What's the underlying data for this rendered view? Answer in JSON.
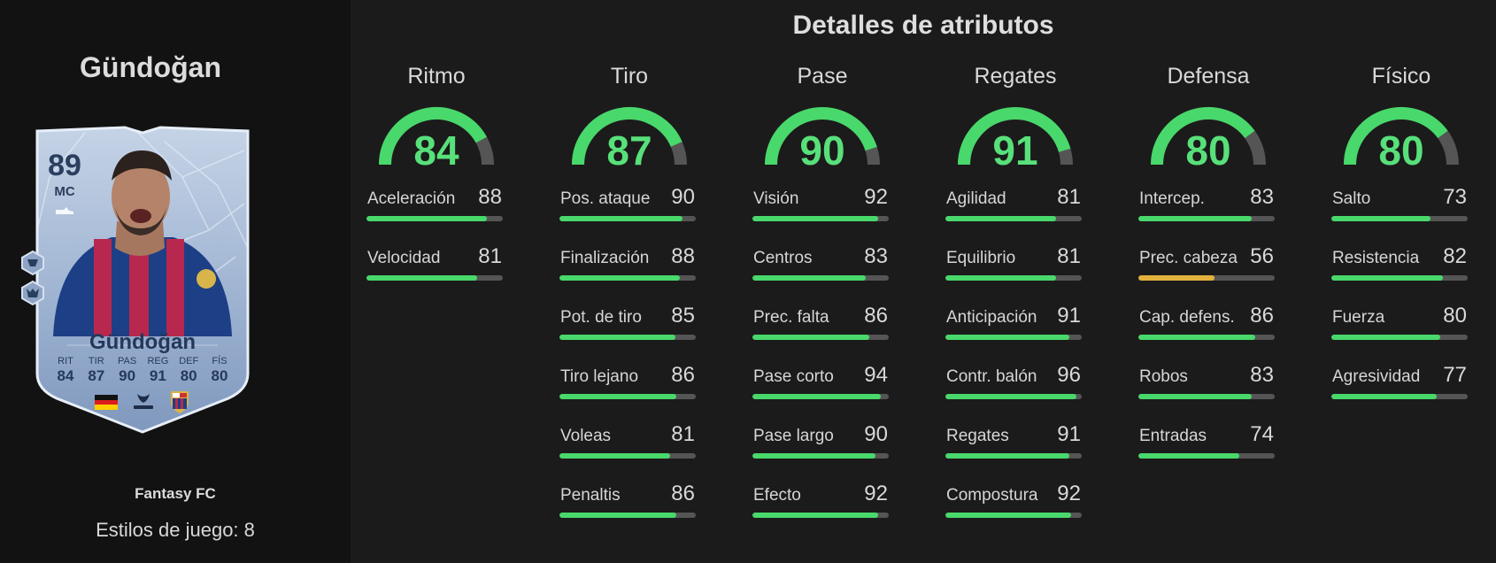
{
  "player": {
    "name": "Gündoğan",
    "card_type": "Fantasy FC",
    "playstyles_label": "Estilos de juego: 8"
  },
  "card": {
    "rating": "89",
    "position": "MC",
    "name": "Gündoğan",
    "stats": [
      {
        "label": "RIT",
        "value": "84"
      },
      {
        "label": "TIR",
        "value": "87"
      },
      {
        "label": "PAS",
        "value": "90"
      },
      {
        "label": "REG",
        "value": "91"
      },
      {
        "label": "DEF",
        "value": "80"
      },
      {
        "label": "FÍS",
        "value": "80"
      }
    ],
    "league_label": "LALIGA"
  },
  "section_title": "Detalles de atributos",
  "attributes": [
    {
      "name": "Ritmo",
      "value": 84,
      "stats": [
        {
          "name": "Aceleración",
          "value": 88
        },
        {
          "name": "Velocidad",
          "value": 81
        }
      ]
    },
    {
      "name": "Tiro",
      "value": 87,
      "stats": [
        {
          "name": "Pos. ataque",
          "value": 90
        },
        {
          "name": "Finalización",
          "value": 88
        },
        {
          "name": "Pot. de tiro",
          "value": 85
        },
        {
          "name": "Tiro lejano",
          "value": 86
        },
        {
          "name": "Voleas",
          "value": 81
        },
        {
          "name": "Penaltis",
          "value": 86
        }
      ]
    },
    {
      "name": "Pase",
      "value": 90,
      "stats": [
        {
          "name": "Visión",
          "value": 92
        },
        {
          "name": "Centros",
          "value": 83
        },
        {
          "name": "Prec. falta",
          "value": 86
        },
        {
          "name": "Pase corto",
          "value": 94
        },
        {
          "name": "Pase largo",
          "value": 90
        },
        {
          "name": "Efecto",
          "value": 92
        }
      ]
    },
    {
      "name": "Regates",
      "value": 91,
      "stats": [
        {
          "name": "Agilidad",
          "value": 81
        },
        {
          "name": "Equilibrio",
          "value": 81
        },
        {
          "name": "Anticipación",
          "value": 91
        },
        {
          "name": "Contr. balón",
          "value": 96
        },
        {
          "name": "Regates",
          "value": 91
        },
        {
          "name": "Compostura",
          "value": 92
        }
      ]
    },
    {
      "name": "Defensa",
      "value": 80,
      "stats": [
        {
          "name": "Intercep.",
          "value": 83
        },
        {
          "name": "Prec. cabeza",
          "value": 56
        },
        {
          "name": "Cap. defens.",
          "value": 86
        },
        {
          "name": "Robos",
          "value": 83
        },
        {
          "name": "Entradas",
          "value": 74
        }
      ]
    },
    {
      "name": "Físico",
      "value": 80,
      "stats": [
        {
          "name": "Salto",
          "value": 73
        },
        {
          "name": "Resistencia",
          "value": 82
        },
        {
          "name": "Fuerza",
          "value": 80
        },
        {
          "name": "Agresividad",
          "value": 77
        }
      ]
    }
  ],
  "colors": {
    "high": "#48d86b",
    "medium": "#e3b23c",
    "track": "#555555",
    "gauge_text": "#58e07a"
  }
}
